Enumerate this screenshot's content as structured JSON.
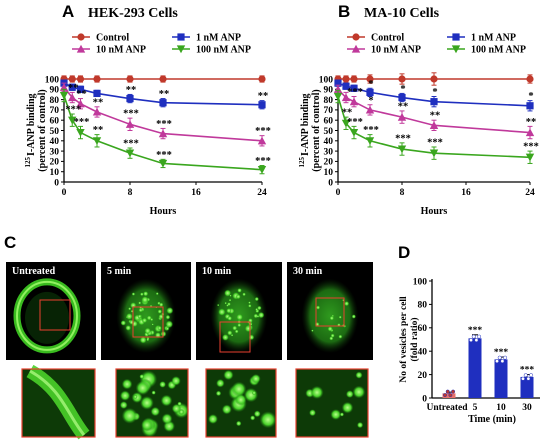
{
  "chart_data": [
    {
      "panel": "A",
      "type": "line",
      "title": "HEK-293 Cells",
      "xlabel": "Hours",
      "ylabel_sup": "125",
      "ylabel": "I-ANP binding",
      "ylabel2": "(percent of control)",
      "xlim": [
        0,
        24
      ],
      "ylim": [
        0,
        100
      ],
      "xticks": [
        "0",
        "8",
        "16",
        "24"
      ],
      "yticks": [
        "0",
        "10",
        "20",
        "30",
        "40",
        "50",
        "60",
        "70",
        "80",
        "90",
        "100"
      ],
      "series": [
        {
          "name": "Control",
          "color": "#c0392b",
          "marker": "circle",
          "x": [
            0,
            1,
            2,
            4,
            8,
            12,
            24
          ],
          "y": [
            100,
            100,
            100,
            100,
            100,
            100,
            100
          ],
          "err": [
            3,
            3,
            3,
            3,
            3,
            3,
            3
          ],
          "sig": [
            "",
            "",
            "",
            "",
            "",
            "",
            ""
          ]
        },
        {
          "name": "1 nM ANP",
          "color": "#1f2fbf",
          "marker": "square",
          "x": [
            0,
            1,
            2,
            4,
            8,
            12,
            24
          ],
          "y": [
            96,
            92,
            90,
            86,
            81,
            77,
            75
          ],
          "err": [
            3,
            3,
            3,
            3,
            4,
            4,
            4
          ],
          "sig": [
            "",
            "",
            "",
            "",
            "**",
            "**",
            "**"
          ]
        },
        {
          "name": "10 nM ANP",
          "color": "#c0399b",
          "marker": "triangle",
          "x": [
            0,
            1,
            2,
            4,
            8,
            12,
            24
          ],
          "y": [
            92,
            82,
            76,
            68,
            56,
            47,
            40
          ],
          "err": [
            4,
            5,
            5,
            5,
            6,
            5,
            5
          ],
          "sig": [
            "",
            "**",
            "**",
            "**",
            "***",
            "***",
            "***"
          ]
        },
        {
          "name": "100 nM ANP",
          "color": "#3aa61e",
          "marker": "triangle-down",
          "x": [
            0,
            1,
            2,
            4,
            8,
            12,
            24
          ],
          "y": [
            84,
            60,
            48,
            40,
            28,
            18,
            12
          ],
          "err": [
            6,
            6,
            6,
            6,
            5,
            4,
            4
          ],
          "sig": [
            "",
            "***",
            "***",
            "**",
            "***",
            "***",
            "***"
          ]
        }
      ]
    },
    {
      "panel": "B",
      "type": "line",
      "title": "MA-10 Cells",
      "xlabel": "Hours",
      "ylabel_sup": "125",
      "ylabel": "I-ANP binding",
      "ylabel2": "(percent of control)",
      "xlim": [
        0,
        24
      ],
      "ylim": [
        0,
        100
      ],
      "xticks": [
        "0",
        "8",
        "16",
        "24"
      ],
      "yticks": [
        "0",
        "10",
        "20",
        "30",
        "40",
        "50",
        "60",
        "70",
        "80",
        "90",
        "100"
      ],
      "series": [
        {
          "name": "Control",
          "color": "#c0392b",
          "marker": "circle",
          "x": [
            0,
            1,
            2,
            4,
            8,
            12,
            24
          ],
          "y": [
            100,
            100,
            100,
            100,
            100,
            100,
            100
          ],
          "err": [
            3,
            3,
            3,
            4,
            5,
            6,
            4
          ],
          "sig": [
            "",
            "",
            "",
            "",
            "",
            "",
            ""
          ]
        },
        {
          "name": "1 nM ANP",
          "color": "#1f2fbf",
          "marker": "square",
          "x": [
            0,
            1,
            2,
            4,
            8,
            12,
            24
          ],
          "y": [
            96,
            93,
            91,
            87,
            82,
            78,
            74
          ],
          "err": [
            3,
            3,
            3,
            4,
            4,
            5,
            5
          ],
          "sig": [
            "",
            "",
            "",
            "*",
            "*",
            "*",
            "*"
          ]
        },
        {
          "name": "10 nM ANP",
          "color": "#c0399b",
          "marker": "triangle",
          "x": [
            0,
            1,
            2,
            4,
            8,
            12,
            24
          ],
          "y": [
            90,
            82,
            78,
            70,
            63,
            55,
            48
          ],
          "err": [
            4,
            5,
            5,
            5,
            6,
            5,
            6
          ],
          "sig": [
            "",
            "",
            "***",
            "*",
            "**",
            "**",
            "**"
          ]
        },
        {
          "name": "100 nM ANP",
          "color": "#3aa61e",
          "marker": "triangle-down",
          "x": [
            0,
            1,
            2,
            4,
            8,
            12,
            24
          ],
          "y": [
            83,
            57,
            48,
            40,
            32,
            28,
            24
          ],
          "err": [
            6,
            6,
            6,
            6,
            6,
            6,
            6
          ],
          "sig": [
            "",
            "**",
            "***",
            "***",
            "***",
            "***",
            "***"
          ]
        }
      ]
    },
    {
      "panel": "D",
      "type": "bar",
      "categories": [
        "Untreated",
        "5",
        "10",
        "30"
      ],
      "values": [
        4,
        51,
        33,
        18
      ],
      "err": [
        1,
        3,
        2,
        2
      ],
      "sig": [
        "",
        "***",
        "***",
        "***"
      ],
      "colors": [
        "#e8716b",
        "#1f2fbf",
        "#1f2fbf",
        "#1f2fbf"
      ],
      "xlabel": "Time (min)",
      "ylabel": "No of vesicles per cell",
      "ylabel2": "(fold ratio)",
      "ylim": [
        0,
        100
      ],
      "yticks": [
        "0",
        "20",
        "40",
        "60",
        "80",
        "100"
      ]
    }
  ],
  "panel_c": {
    "letter": "C",
    "images": [
      {
        "title": "Untreated",
        "pattern": "ring"
      },
      {
        "title": "5 min",
        "pattern": "dense"
      },
      {
        "title": "10 min",
        "pattern": "medium"
      },
      {
        "title": "30 min",
        "pattern": "sparse"
      }
    ]
  },
  "colors": {
    "accent_box": "#e84030"
  }
}
